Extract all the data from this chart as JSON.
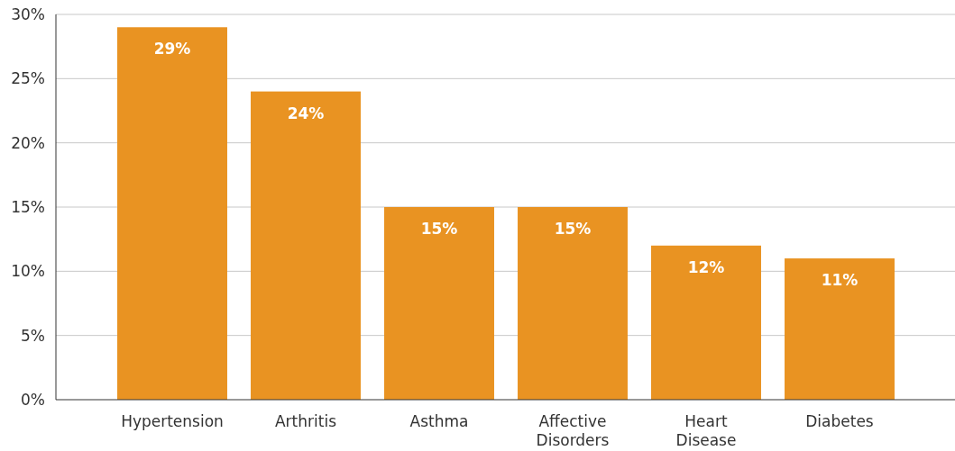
{
  "chart_data": {
    "type": "bar",
    "categories": [
      "Hypertension",
      "Arthritis",
      "Asthma",
      "Affective Disorders",
      "Heart Disease",
      "Diabetes"
    ],
    "values": [
      29,
      24,
      15,
      15,
      12,
      11
    ],
    "color": "#e99322",
    "value_labels": [
      "29%",
      "24%",
      "15%",
      "15%",
      "12%",
      "11%"
    ],
    "ylim": [
      0,
      30
    ],
    "yticks": [
      {
        "value": 0,
        "label": "0%"
      },
      {
        "value": 5,
        "label": "5%"
      },
      {
        "value": 10,
        "label": "10%"
      },
      {
        "value": 15,
        "label": "15%"
      },
      {
        "value": 20,
        "label": "20%"
      },
      {
        "value": 25,
        "label": "25%"
      },
      {
        "value": 30,
        "label": "30%"
      }
    ],
    "grid": "y"
  }
}
